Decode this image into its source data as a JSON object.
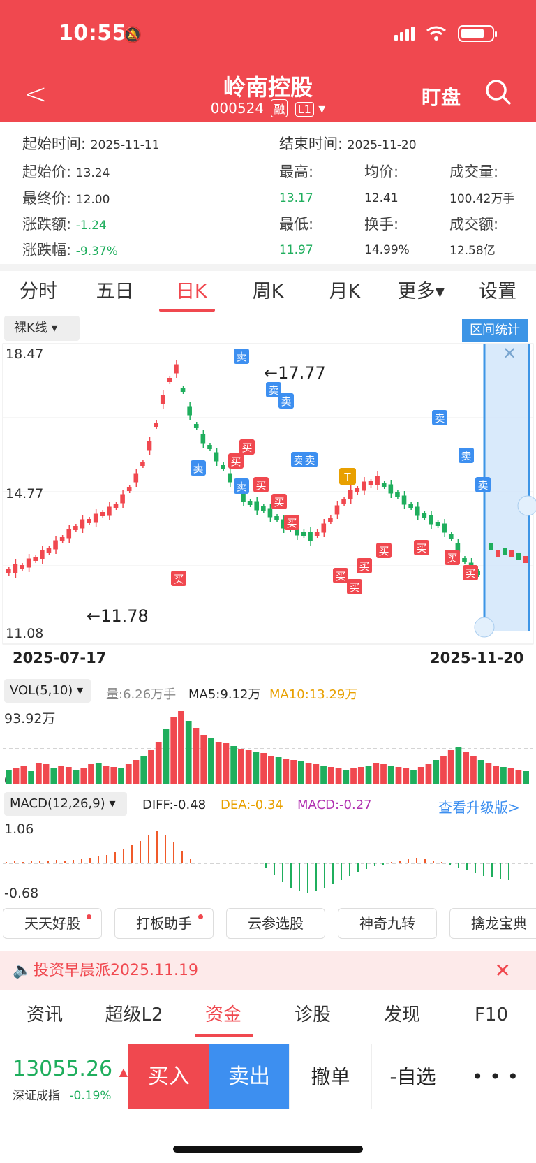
{
  "status": {
    "time": "10:55"
  },
  "header": {
    "title": "岭南控股",
    "code": "000524",
    "tag_rong": "融",
    "tag_level": "L1",
    "watch_label": "盯盘"
  },
  "info": {
    "start_time_label": "起始时间:",
    "start_time": "2025-11-11",
    "end_time_label": "结束时间:",
    "end_time": "2025-11-20",
    "start_price_label": "起始价:",
    "start_price": "13.24",
    "final_price_label": "最终价:",
    "final_price": "12.00",
    "change_amt_label": "涨跌额:",
    "change_amt": "-1.24",
    "change_pct_label": "涨跌幅:",
    "change_pct": "-9.37%",
    "high_label": "最高:",
    "high": "13.17",
    "low_label": "最低:",
    "low": "11.97",
    "avg_label": "均价:",
    "avg": "12.41",
    "turnover_label": "换手:",
    "turnover": "14.99%",
    "volume_label": "成交量:",
    "volume": "100.42万手",
    "amount_label": "成交额:",
    "amount": "12.58亿"
  },
  "tabs": [
    "分时",
    "五日",
    "日K",
    "周K",
    "月K",
    "更多",
    "设置"
  ],
  "kline_mode": "裸K线",
  "range_button": "区间统计",
  "chart_axis": {
    "y_top": "18.47",
    "y_mid": "14.77",
    "y_bottom": "11.08",
    "start_date": "2025-07-17",
    "end_date": "2025-11-20",
    "high_mark": "17.77",
    "low_mark": "11.78"
  },
  "trade_marks": {
    "buy": "买",
    "sell": "卖",
    "t": "T"
  },
  "vol": {
    "selector": "VOL(5,10)",
    "current": "量:6.26万手",
    "ma5": "MA5:9.12万",
    "ma10": "MA10:13.29万",
    "top": "93.92万",
    "zero": "0"
  },
  "macd": {
    "selector": "MACD(12,26,9)",
    "diff": "DIFF:-0.48",
    "dea": "DEA:-0.34",
    "macd": "MACD:-0.27",
    "upgrade": "查看升级版>",
    "top": "1.06",
    "bottom": "-0.68"
  },
  "plugins": [
    "天天好股",
    "打板助手",
    "云参选股",
    "神奇九转",
    "擒龙宝典"
  ],
  "news": {
    "text": "投资早晨派2025.11.19"
  },
  "sectabs": [
    "资讯",
    "超级L2",
    "资金",
    "诊股",
    "发现",
    "F10"
  ],
  "bottom": {
    "index_value": "13055.26",
    "index_name": "深证成指",
    "index_change": "-0.19%",
    "buy": "买入",
    "sell": "卖出",
    "cancel": "撤单",
    "watchlist": "-自选",
    "more": "• • •"
  },
  "colors": {
    "up": "#f0484f",
    "down": "#1fae5d",
    "accent": "#3d95e6",
    "ma10": "#e8a000"
  }
}
